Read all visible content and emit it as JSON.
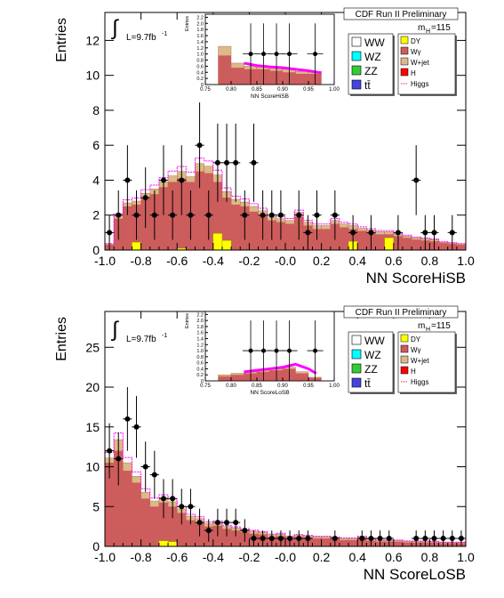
{
  "colors": {
    "signal_main": "#cd5c5c",
    "wjet": "#deb887",
    "dy": "#ffff00",
    "ww": "#ffffff",
    "wz": "#00ffff",
    "zz": "#33cc33",
    "tt": "#4444dd",
    "h": "#ff0000",
    "band": "#ff00ff",
    "data": "#000000"
  },
  "chart_data": [
    {
      "type": "histogram",
      "header": "CDF Run II Preliminary",
      "mass_label": "m",
      "mass_sub": "H",
      "mass_value": "=115",
      "lumi_prefix": "L=9.7fb",
      "lumi_sup": "-1",
      "ylabel": "Entries",
      "xlabel": "NN ScoreHiSB",
      "xlim": [
        -1,
        1
      ],
      "ylim": [
        0,
        13.6
      ],
      "xticks": [
        "-1.0",
        "-0.8",
        "-0.6",
        "-0.4",
        "-0.2",
        "-0.0",
        "0.2",
        "0.4",
        "0.6",
        "0.8",
        "1.0"
      ],
      "yticks": [
        "0",
        "2",
        "4",
        "6",
        "8",
        "10",
        "12"
      ],
      "legend": [
        {
          "label": "WW",
          "color": "ww"
        },
        {
          "label": "DY",
          "color": "dy"
        },
        {
          "label": "WZ",
          "color": "wz"
        },
        {
          "label": "Wγ",
          "color": "signal_main"
        },
        {
          "label": "ZZ",
          "color": "zz"
        },
        {
          "label": "W+jet",
          "color": "wjet"
        },
        {
          "label": "tt̄",
          "color": "tt"
        },
        {
          "label": "H",
          "color": "h"
        },
        {
          "label": "Higgs",
          "color": "h"
        }
      ],
      "main_bins": [
        0.3,
        1.8,
        2.5,
        2.6,
        3.0,
        3.2,
        3.6,
        3.9,
        4.1,
        3.9,
        4.5,
        4.4,
        3.9,
        3.0,
        2.6,
        2.5,
        2.2,
        2.0,
        1.7,
        1.6,
        1.5,
        1.9,
        1.4,
        1.2,
        1.2,
        1.5,
        1.3,
        1.2,
        1.1,
        1.0,
        0.9,
        0.9,
        0.8,
        0.7,
        0.6,
        0.55,
        0.5,
        0.4,
        0.35,
        0.3
      ],
      "wjet_bins": [
        0.05,
        0.15,
        0.2,
        0.2,
        0.25,
        0.3,
        0.3,
        0.35,
        0.4,
        0.3,
        0.45,
        0.4,
        0.4,
        0.35,
        0.3,
        0.25,
        0.3,
        0.25,
        0.2,
        0.2,
        0.2,
        0.25,
        0.2,
        0.2,
        0.2,
        0.2,
        0.2,
        0.2,
        0.15,
        0.15,
        0.15,
        0.15,
        0.1,
        0.1,
        0.1,
        0.1,
        0.1,
        0.05,
        0.05,
        0.05
      ],
      "dy_bins": [
        0,
        0,
        0,
        0.45,
        0,
        0,
        0,
        0,
        0.1,
        0,
        0,
        0,
        0.95,
        0.55,
        0,
        0,
        0,
        0,
        0,
        0,
        0,
        0,
        0,
        0,
        0,
        0,
        0,
        0.5,
        0,
        0,
        0,
        0.7,
        0,
        0,
        0,
        0,
        0,
        0,
        0,
        0
      ],
      "data_points": [
        {
          "x": -0.975,
          "y": 1
        },
        {
          "x": -0.925,
          "y": 2
        },
        {
          "x": -0.875,
          "y": 4
        },
        {
          "x": -0.825,
          "y": 2
        },
        {
          "x": -0.775,
          "y": 3
        },
        {
          "x": -0.725,
          "y": 2
        },
        {
          "x": -0.675,
          "y": 4
        },
        {
          "x": -0.625,
          "y": 2
        },
        {
          "x": -0.575,
          "y": 4
        },
        {
          "x": -0.525,
          "y": 2
        },
        {
          "x": -0.475,
          "y": 6
        },
        {
          "x": -0.425,
          "y": 2
        },
        {
          "x": -0.375,
          "y": 5
        },
        {
          "x": -0.325,
          "y": 5
        },
        {
          "x": -0.275,
          "y": 5
        },
        {
          "x": -0.225,
          "y": 2
        },
        {
          "x": -0.175,
          "y": 5
        },
        {
          "x": -0.125,
          "y": 2
        },
        {
          "x": -0.075,
          "y": 2
        },
        {
          "x": -0.025,
          "y": 2
        },
        {
          "x": 0.075,
          "y": 2
        },
        {
          "x": 0.125,
          "y": 1
        },
        {
          "x": 0.175,
          "y": 2
        },
        {
          "x": 0.275,
          "y": 2
        },
        {
          "x": 0.375,
          "y": 1
        },
        {
          "x": 0.475,
          "y": 1
        },
        {
          "x": 0.625,
          "y": 1
        },
        {
          "x": 0.725,
          "y": 4
        },
        {
          "x": 0.775,
          "y": 1
        },
        {
          "x": 0.825,
          "y": 1
        },
        {
          "x": 0.925,
          "y": 1
        }
      ],
      "inset": {
        "xlabel": "NN ScoreHiSB",
        "ylabel": "Entries",
        "xlim": [
          0.75,
          1.0
        ],
        "ylim": [
          0,
          2.3
        ],
        "xticks": [
          "0.75",
          "0.80",
          "0.85",
          "0.90",
          "0.95",
          "1.00"
        ],
        "yticks": [
          "0",
          "0.2",
          "0.4",
          "0.6",
          "0.8",
          "1.0",
          "1.2",
          "1.4",
          "1.6",
          "1.8",
          "2.0",
          "2.2"
        ],
        "main_bins": [
          0,
          0.95,
          0.55,
          0.5,
          0.5,
          0.45,
          0.4,
          0.35,
          0.35,
          0
        ],
        "wjet_bins": [
          0,
          0.3,
          0.15,
          0.1,
          0.1,
          0.1,
          0.1,
          0.08,
          0.08,
          0
        ],
        "band": [
          [
            0.825,
            0.7
          ],
          [
            0.85,
            0.62
          ],
          [
            0.875,
            0.58
          ],
          [
            0.9,
            0.55
          ],
          [
            0.925,
            0.5
          ],
          [
            0.95,
            0.45
          ],
          [
            0.975,
            0.38
          ]
        ],
        "data_points": [
          {
            "x": 0.838,
            "y": 1
          },
          {
            "x": 0.863,
            "y": 1
          },
          {
            "x": 0.888,
            "y": 1
          },
          {
            "x": 0.913,
            "y": 1
          },
          {
            "x": 0.963,
            "y": 1
          }
        ]
      }
    },
    {
      "type": "histogram",
      "header": "CDF Run II Preliminary",
      "mass_label": "m",
      "mass_sub": "H",
      "mass_value": "=115",
      "lumi_prefix": "L=9.7fb",
      "lumi_sup": "-1",
      "ylabel": "Entries",
      "xlabel": "NN ScoreLoSB",
      "xlim": [
        -1,
        1
      ],
      "ylim": [
        0,
        29.5
      ],
      "xticks": [
        "-1.0",
        "-0.8",
        "-0.6",
        "-0.4",
        "-0.2",
        "-0.0",
        "0.2",
        "0.4",
        "0.6",
        "0.8",
        "1.0"
      ],
      "yticks": [
        "0",
        "5",
        "10",
        "15",
        "20",
        "25"
      ],
      "legend": [
        {
          "label": "WW",
          "color": "ww"
        },
        {
          "label": "DY",
          "color": "dy"
        },
        {
          "label": "WZ",
          "color": "wz"
        },
        {
          "label": "Wγ",
          "color": "signal_main"
        },
        {
          "label": "ZZ",
          "color": "zz"
        },
        {
          "label": "W+jet",
          "color": "wjet"
        },
        {
          "label": "tt̄",
          "color": "tt"
        },
        {
          "label": "H",
          "color": "h"
        },
        {
          "label": "Higgs",
          "color": "h"
        }
      ],
      "main_bins": [
        10.5,
        12.0,
        9.5,
        8.0,
        6.0,
        5.0,
        5.5,
        5.0,
        4.2,
        3.3,
        3.0,
        2.5,
        2.6,
        2.2,
        2.0,
        1.8,
        1.6,
        1.5,
        1.2,
        1.3,
        1.0,
        1.2,
        1.1,
        1.0,
        1.0,
        0.9,
        0.8,
        0.8,
        1.0,
        0.7,
        0.6,
        0.6,
        0.6,
        0.5,
        0.5,
        0.5,
        0.5,
        0.4,
        0.4,
        0.4
      ],
      "wjet_bins": [
        0.6,
        1.4,
        1.0,
        0.8,
        0.8,
        0.7,
        0.6,
        0.6,
        0.5,
        0.5,
        0.5,
        0.4,
        0.4,
        0.3,
        0.3,
        0.3,
        0.3,
        0.25,
        0.25,
        0.25,
        0.2,
        0.2,
        0.2,
        0.2,
        0.2,
        0.2,
        0.2,
        0.2,
        0.2,
        0.2,
        0.15,
        0.15,
        0.15,
        0.15,
        0.15,
        0.15,
        0.1,
        0.1,
        0.1,
        0.1
      ],
      "dy_bins": [
        0,
        0,
        0,
        0,
        0,
        0,
        0.7,
        0.6,
        0,
        0,
        0,
        0,
        0,
        0,
        0,
        0,
        0,
        0,
        0,
        0,
        0,
        0,
        0,
        0,
        0,
        0,
        0,
        0,
        0,
        0,
        0,
        0,
        0,
        0,
        0,
        0,
        0,
        0,
        0,
        0
      ],
      "data_points": [
        {
          "x": -0.975,
          "y": 12
        },
        {
          "x": -0.925,
          "y": 11
        },
        {
          "x": -0.875,
          "y": 16
        },
        {
          "x": -0.825,
          "y": 15
        },
        {
          "x": -0.775,
          "y": 10
        },
        {
          "x": -0.725,
          "y": 9
        },
        {
          "x": -0.675,
          "y": 6
        },
        {
          "x": -0.625,
          "y": 6
        },
        {
          "x": -0.575,
          "y": 5
        },
        {
          "x": -0.525,
          "y": 5
        },
        {
          "x": -0.475,
          "y": 3
        },
        {
          "x": -0.425,
          "y": 2
        },
        {
          "x": -0.375,
          "y": 3
        },
        {
          "x": -0.325,
          "y": 3
        },
        {
          "x": -0.275,
          "y": 3
        },
        {
          "x": -0.225,
          "y": 2
        },
        {
          "x": -0.175,
          "y": 1
        },
        {
          "x": -0.125,
          "y": 1
        },
        {
          "x": -0.075,
          "y": 1
        },
        {
          "x": -0.025,
          "y": 1
        },
        {
          "x": 0.025,
          "y": 1
        },
        {
          "x": 0.075,
          "y": 1
        },
        {
          "x": 0.125,
          "y": 1
        },
        {
          "x": 0.275,
          "y": 1
        },
        {
          "x": 0.425,
          "y": 1
        },
        {
          "x": 0.475,
          "y": 1
        },
        {
          "x": 0.525,
          "y": 1
        },
        {
          "x": 0.575,
          "y": 1
        },
        {
          "x": 0.725,
          "y": 1
        },
        {
          "x": 0.775,
          "y": 1
        },
        {
          "x": 0.825,
          "y": 1
        },
        {
          "x": 0.875,
          "y": 1
        },
        {
          "x": 0.925,
          "y": 1
        },
        {
          "x": 0.975,
          "y": 1
        }
      ],
      "inset": {
        "xlabel": "NN ScoreLoSB",
        "ylabel": "Entries",
        "xlim": [
          0.75,
          1.0
        ],
        "ylim": [
          0,
          2.3
        ],
        "xticks": [
          "0.75",
          "0.80",
          "0.85",
          "0.90",
          "0.95",
          "1.00"
        ],
        "yticks": [
          "0",
          "0.2",
          "0.4",
          "0.6",
          "0.8",
          "1.0",
          "1.2",
          "1.4",
          "1.6",
          "1.8",
          "2.0",
          "2.2"
        ],
        "main_bins": [
          0,
          0.15,
          0.2,
          0.25,
          0.3,
          0.35,
          0.4,
          0.25,
          0.1,
          0
        ],
        "wjet_bins": [
          0,
          0.05,
          0.05,
          0.05,
          0.05,
          0.05,
          0.05,
          0.05,
          0.02,
          0
        ],
        "band": [
          [
            0.825,
            0.3
          ],
          [
            0.85,
            0.35
          ],
          [
            0.875,
            0.4
          ],
          [
            0.9,
            0.45
          ],
          [
            0.925,
            0.55
          ],
          [
            0.95,
            0.4
          ],
          [
            0.965,
            0.25
          ]
        ],
        "data_points": [
          {
            "x": 0.838,
            "y": 1
          },
          {
            "x": 0.863,
            "y": 1
          },
          {
            "x": 0.888,
            "y": 1
          },
          {
            "x": 0.913,
            "y": 1
          },
          {
            "x": 0.963,
            "y": 1
          }
        ]
      }
    }
  ]
}
